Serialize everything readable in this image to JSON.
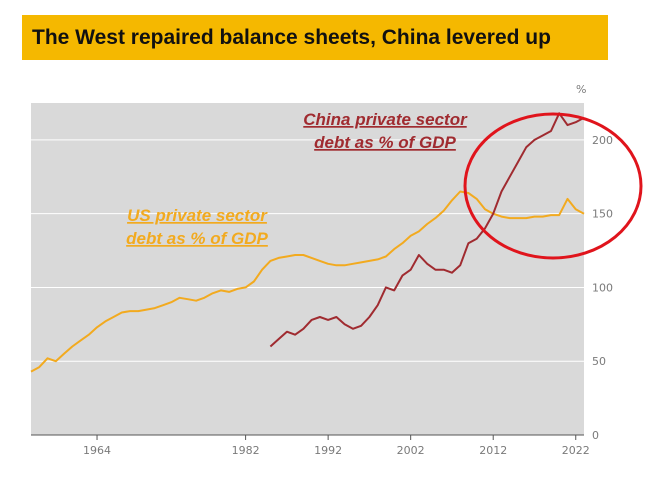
{
  "chart_data": {
    "type": "line",
    "title": "The West repaired balance sheets, China levered up",
    "ylabel": "%",
    "xlabel": "",
    "xlim": [
      1956,
      2023
    ],
    "ylim": [
      0,
      225
    ],
    "y_ticks": [
      0,
      50,
      100,
      150,
      200
    ],
    "x_ticks": [
      1964,
      1982,
      1992,
      2002,
      2012,
      2022
    ],
    "grid": true,
    "colors": {
      "banner": "#f5b800",
      "plot_bg": "#d9d9d9",
      "highlight_circle": "#e0141c"
    },
    "series": [
      {
        "name": "US private sector debt as % of GDP",
        "label_lines": [
          "US private sector",
          "debt as % of GDP"
        ],
        "color": "#f2aa1f",
        "x": [
          1956,
          1957,
          1958,
          1959,
          1960,
          1961,
          1962,
          1963,
          1964,
          1965,
          1966,
          1967,
          1968,
          1969,
          1970,
          1971,
          1972,
          1973,
          1974,
          1975,
          1976,
          1977,
          1978,
          1979,
          1980,
          1981,
          1982,
          1983,
          1984,
          1985,
          1986,
          1987,
          1988,
          1989,
          1990,
          1991,
          1992,
          1993,
          1994,
          1995,
          1996,
          1997,
          1998,
          1999,
          2000,
          2001,
          2002,
          2003,
          2004,
          2005,
          2006,
          2007,
          2008,
          2009,
          2010,
          2011,
          2012,
          2013,
          2014,
          2015,
          2016,
          2017,
          2018,
          2019,
          2020,
          2021,
          2022,
          2023
        ],
        "values": [
          43,
          46,
          52,
          50,
          55,
          60,
          64,
          68,
          73,
          77,
          80,
          83,
          84,
          84,
          85,
          86,
          88,
          90,
          93,
          92,
          91,
          93,
          96,
          98,
          97,
          99,
          100,
          104,
          112,
          118,
          120,
          121,
          122,
          122,
          120,
          118,
          116,
          115,
          115,
          116,
          117,
          118,
          119,
          121,
          126,
          130,
          135,
          138,
          143,
          147,
          152,
          159,
          165,
          164,
          160,
          153,
          150,
          148,
          147,
          147,
          147,
          148,
          148,
          149,
          149,
          160,
          153,
          150
        ]
      },
      {
        "name": "China private sector debt as % of GDP",
        "label_lines": [
          "China private sector",
          "debt as % of GDP"
        ],
        "color": "#a02b30",
        "x": [
          1985,
          1986,
          1987,
          1988,
          1989,
          1990,
          1991,
          1992,
          1993,
          1994,
          1995,
          1996,
          1997,
          1998,
          1999,
          2000,
          2001,
          2002,
          2003,
          2004,
          2005,
          2006,
          2007,
          2008,
          2009,
          2010,
          2011,
          2012,
          2013,
          2014,
          2015,
          2016,
          2017,
          2018,
          2019,
          2020,
          2021,
          2022,
          2023
        ],
        "values": [
          60,
          65,
          70,
          68,
          72,
          78,
          80,
          78,
          80,
          75,
          72,
          74,
          80,
          88,
          100,
          98,
          108,
          112,
          122,
          116,
          112,
          112,
          110,
          115,
          130,
          133,
          140,
          150,
          165,
          175,
          185,
          195,
          200,
          203,
          206,
          218,
          210,
          212,
          215
        ]
      }
    ],
    "annotation": "highlight circle around 2012–2022"
  }
}
